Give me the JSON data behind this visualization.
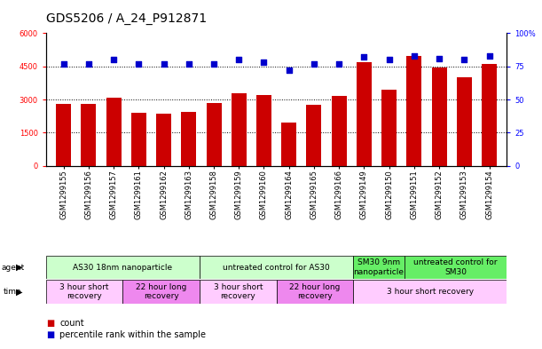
{
  "title": "GDS5206 / A_24_P912871",
  "samples": [
    "GSM1299155",
    "GSM1299156",
    "GSM1299157",
    "GSM1299161",
    "GSM1299162",
    "GSM1299163",
    "GSM1299158",
    "GSM1299159",
    "GSM1299160",
    "GSM1299164",
    "GSM1299165",
    "GSM1299166",
    "GSM1299149",
    "GSM1299150",
    "GSM1299151",
    "GSM1299152",
    "GSM1299153",
    "GSM1299154"
  ],
  "counts": [
    2800,
    2780,
    3100,
    2400,
    2350,
    2450,
    2850,
    3300,
    3200,
    1950,
    2750,
    3150,
    4700,
    3450,
    4950,
    4450,
    4000,
    4600
  ],
  "percentiles": [
    77,
    77,
    80,
    77,
    77,
    77,
    77,
    80,
    78,
    72,
    77,
    77,
    82,
    80,
    83,
    81,
    80,
    83
  ],
  "bar_color": "#cc0000",
  "dot_color": "#0000cc",
  "ylim_left": [
    0,
    6000
  ],
  "ylim_right": [
    0,
    100
  ],
  "yticks_left": [
    0,
    1500,
    3000,
    4500,
    6000
  ],
  "yticks_right": [
    0,
    25,
    50,
    75,
    100
  ],
  "ytick_labels_left": [
    "0",
    "1500",
    "3000",
    "4500",
    "6000"
  ],
  "ytick_labels_right": [
    "0",
    "25",
    "50",
    "75",
    "100%"
  ],
  "agent_spans": [
    {
      "text": "AS30 18nm nanoparticle",
      "start": 0,
      "end": 5,
      "color": "#ccffcc"
    },
    {
      "text": "untreated control for AS30",
      "start": 6,
      "end": 11,
      "color": "#ccffcc"
    },
    {
      "text": "SM30 9nm\nnanoparticle",
      "start": 12,
      "end": 13,
      "color": "#66ee66"
    },
    {
      "text": "untreated control for\nSM30",
      "start": 14,
      "end": 17,
      "color": "#66ee66"
    }
  ],
  "time_spans": [
    {
      "text": "3 hour short\nrecovery",
      "start": 0,
      "end": 2,
      "color": "#ffccff"
    },
    {
      "text": "22 hour long\nrecovery",
      "start": 3,
      "end": 5,
      "color": "#ee88ee"
    },
    {
      "text": "3 hour short\nrecovery",
      "start": 6,
      "end": 8,
      "color": "#ffccff"
    },
    {
      "text": "22 hour long\nrecovery",
      "start": 9,
      "end": 11,
      "color": "#ee88ee"
    },
    {
      "text": "3 hour short recovery",
      "start": 12,
      "end": 17,
      "color": "#ffccff"
    }
  ],
  "legend_count_color": "#cc0000",
  "legend_pct_color": "#0000cc",
  "bg_color": "#ffffff",
  "title_fontsize": 10,
  "tick_fontsize": 6,
  "annot_fontsize": 6.5,
  "legend_fontsize": 7
}
